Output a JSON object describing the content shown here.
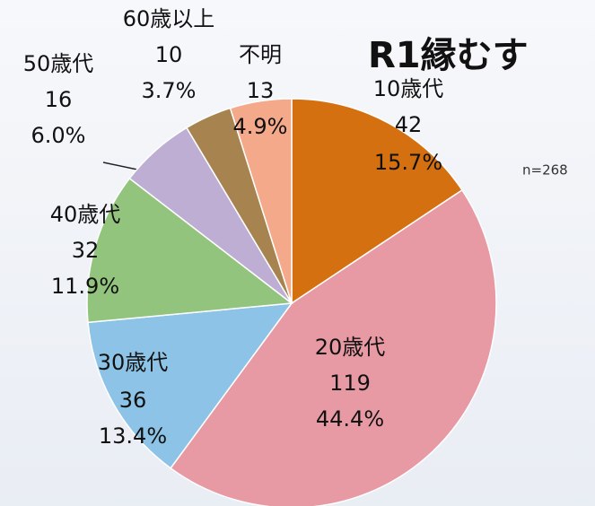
{
  "chart_data": {
    "type": "pie",
    "title": "R1縁むす",
    "annotation": "n=268",
    "categories": [
      "10歳代",
      "20歳代",
      "30歳代",
      "40歳代",
      "50歳代",
      "60歳以上",
      "不明"
    ],
    "values": [
      42,
      119,
      36,
      32,
      16,
      10,
      13
    ],
    "percent_labels": [
      "15.7%",
      "44.4%",
      "13.4%",
      "11.9%",
      "6.0%",
      "3.7%",
      "4.9%"
    ],
    "colors": [
      "#d4700f",
      "#e89aa4",
      "#8cc3e6",
      "#93c47d",
      "#bfaed4",
      "#a6834f",
      "#f4a98a"
    ]
  }
}
